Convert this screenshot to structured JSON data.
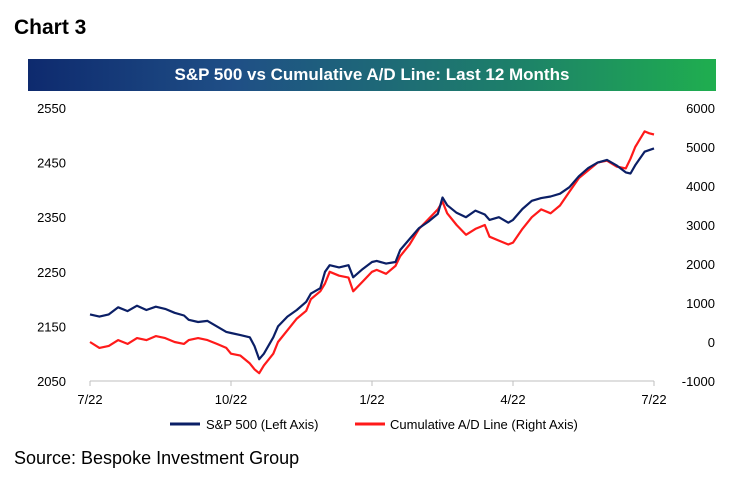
{
  "header": {
    "chart_label": "Chart 3",
    "source": "Source: Bespoke Investment Group"
  },
  "chart_data": {
    "type": "line",
    "title": "S&P 500 vs Cumulative A/D Line: Last 12 Months",
    "x_tick_labels": [
      "7/22",
      "10/22",
      "1/22",
      "4/22",
      "7/22"
    ],
    "x_tick_months": [
      0,
      3,
      6,
      9,
      12
    ],
    "xlim": [
      0,
      12
    ],
    "y_left": {
      "ticks": [
        2050,
        2150,
        2250,
        2350,
        2450,
        2550
      ],
      "lim": [
        2050,
        2550
      ]
    },
    "y_right": {
      "ticks": [
        -1000,
        0,
        1000,
        2000,
        3000,
        4000,
        5000,
        6000
      ],
      "lim": [
        -1000,
        6000
      ]
    },
    "grid": false,
    "legend_position": "bottom",
    "series": [
      {
        "name": "S&P 500 (Left Axis)",
        "axis": "left",
        "color": "#0b1f66",
        "points": [
          [
            0.0,
            2172
          ],
          [
            0.2,
            2168
          ],
          [
            0.4,
            2172
          ],
          [
            0.6,
            2185
          ],
          [
            0.8,
            2178
          ],
          [
            1.0,
            2188
          ],
          [
            1.2,
            2180
          ],
          [
            1.4,
            2186
          ],
          [
            1.6,
            2182
          ],
          [
            1.8,
            2175
          ],
          [
            2.0,
            2170
          ],
          [
            2.1,
            2162
          ],
          [
            2.3,
            2158
          ],
          [
            2.5,
            2160
          ],
          [
            2.7,
            2150
          ],
          [
            2.9,
            2140
          ],
          [
            3.0,
            2138
          ],
          [
            3.2,
            2134
          ],
          [
            3.4,
            2130
          ],
          [
            3.5,
            2114
          ],
          [
            3.6,
            2090
          ],
          [
            3.7,
            2100
          ],
          [
            3.9,
            2130
          ],
          [
            4.0,
            2150
          ],
          [
            4.2,
            2168
          ],
          [
            4.4,
            2180
          ],
          [
            4.6,
            2195
          ],
          [
            4.7,
            2210
          ],
          [
            4.9,
            2220
          ],
          [
            5.0,
            2250
          ],
          [
            5.1,
            2262
          ],
          [
            5.3,
            2258
          ],
          [
            5.5,
            2262
          ],
          [
            5.6,
            2240
          ],
          [
            5.8,
            2255
          ],
          [
            6.0,
            2268
          ],
          [
            6.1,
            2270
          ],
          [
            6.3,
            2265
          ],
          [
            6.5,
            2268
          ],
          [
            6.6,
            2290
          ],
          [
            6.8,
            2310
          ],
          [
            7.0,
            2330
          ],
          [
            7.2,
            2342
          ],
          [
            7.4,
            2356
          ],
          [
            7.5,
            2386
          ],
          [
            7.6,
            2372
          ],
          [
            7.8,
            2358
          ],
          [
            8.0,
            2350
          ],
          [
            8.2,
            2362
          ],
          [
            8.4,
            2355
          ],
          [
            8.5,
            2345
          ],
          [
            8.7,
            2350
          ],
          [
            8.9,
            2340
          ],
          [
            9.0,
            2345
          ],
          [
            9.2,
            2365
          ],
          [
            9.4,
            2380
          ],
          [
            9.6,
            2385
          ],
          [
            9.8,
            2388
          ],
          [
            10.0,
            2393
          ],
          [
            10.2,
            2405
          ],
          [
            10.4,
            2425
          ],
          [
            10.6,
            2440
          ],
          [
            10.8,
            2450
          ],
          [
            11.0,
            2455
          ],
          [
            11.2,
            2445
          ],
          [
            11.4,
            2432
          ],
          [
            11.5,
            2430
          ],
          [
            11.6,
            2445
          ],
          [
            11.8,
            2470
          ],
          [
            12.0,
            2476
          ]
        ]
      },
      {
        "name": "Cumulative A/D Line (Right Axis)",
        "axis": "right",
        "color": "#ff1a1a",
        "points": [
          [
            0.0,
            0
          ],
          [
            0.2,
            -150
          ],
          [
            0.4,
            -100
          ],
          [
            0.6,
            50
          ],
          [
            0.8,
            -50
          ],
          [
            1.0,
            100
          ],
          [
            1.2,
            50
          ],
          [
            1.4,
            150
          ],
          [
            1.6,
            100
          ],
          [
            1.8,
            0
          ],
          [
            2.0,
            -50
          ],
          [
            2.1,
            50
          ],
          [
            2.3,
            100
          ],
          [
            2.5,
            50
          ],
          [
            2.7,
            -50
          ],
          [
            2.9,
            -150
          ],
          [
            3.0,
            -300
          ],
          [
            3.2,
            -350
          ],
          [
            3.4,
            -550
          ],
          [
            3.5,
            -700
          ],
          [
            3.6,
            -800
          ],
          [
            3.7,
            -600
          ],
          [
            3.9,
            -300
          ],
          [
            4.0,
            0
          ],
          [
            4.2,
            300
          ],
          [
            4.4,
            600
          ],
          [
            4.6,
            800
          ],
          [
            4.7,
            1100
          ],
          [
            4.9,
            1300
          ],
          [
            5.0,
            1500
          ],
          [
            5.1,
            1800
          ],
          [
            5.3,
            1700
          ],
          [
            5.5,
            1650
          ],
          [
            5.6,
            1300
          ],
          [
            5.8,
            1550
          ],
          [
            6.0,
            1800
          ],
          [
            6.1,
            1850
          ],
          [
            6.3,
            1750
          ],
          [
            6.5,
            1950
          ],
          [
            6.6,
            2200
          ],
          [
            6.8,
            2500
          ],
          [
            7.0,
            2900
          ],
          [
            7.2,
            3150
          ],
          [
            7.4,
            3400
          ],
          [
            7.5,
            3600
          ],
          [
            7.6,
            3300
          ],
          [
            7.8,
            3000
          ],
          [
            8.0,
            2750
          ],
          [
            8.2,
            2900
          ],
          [
            8.4,
            3000
          ],
          [
            8.5,
            2700
          ],
          [
            8.7,
            2600
          ],
          [
            8.9,
            2500
          ],
          [
            9.0,
            2550
          ],
          [
            9.2,
            2900
          ],
          [
            9.4,
            3200
          ],
          [
            9.6,
            3400
          ],
          [
            9.8,
            3300
          ],
          [
            10.0,
            3500
          ],
          [
            10.2,
            3850
          ],
          [
            10.4,
            4200
          ],
          [
            10.6,
            4400
          ],
          [
            10.8,
            4600
          ],
          [
            11.0,
            4650
          ],
          [
            11.2,
            4500
          ],
          [
            11.4,
            4450
          ],
          [
            11.5,
            4700
          ],
          [
            11.6,
            5000
          ],
          [
            11.7,
            5200
          ],
          [
            11.8,
            5400
          ],
          [
            11.9,
            5350
          ],
          [
            12.0,
            5320
          ]
        ]
      }
    ]
  }
}
